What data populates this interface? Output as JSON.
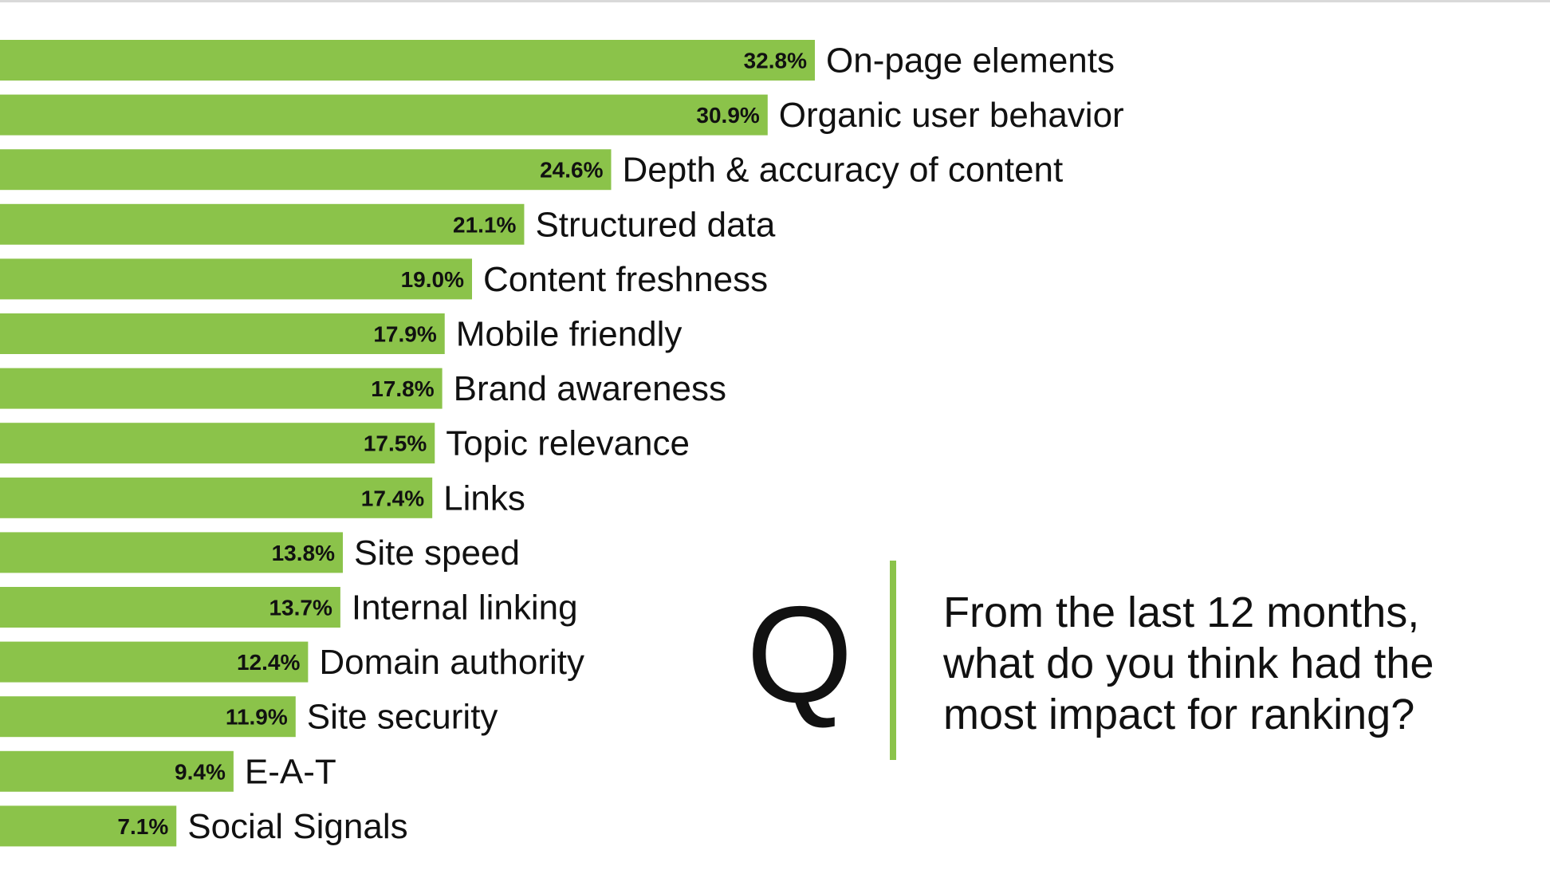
{
  "colors": {
    "bar": "#8bc34a",
    "text": "#111111",
    "accent_rule": "#8bc34a"
  },
  "question": {
    "mark": "Q",
    "lines": [
      "From the last 12 months,",
      "what do you think had the",
      "most impact for ranking?"
    ]
  },
  "chart_data": {
    "type": "bar",
    "orientation": "horizontal",
    "categories": [
      "On-page elements",
      "Organic user behavior",
      "Depth & accuracy of content",
      "Structured data",
      "Content freshness",
      "Mobile friendly",
      "Brand awareness",
      "Topic relevance",
      "Links",
      "Site speed",
      "Internal linking",
      "Domain authority",
      "Site security",
      "E-A-T",
      "Social Signals"
    ],
    "values": [
      32.8,
      30.9,
      24.6,
      21.1,
      19.0,
      17.9,
      17.8,
      17.5,
      17.4,
      13.8,
      13.7,
      12.4,
      11.9,
      9.4,
      7.1
    ],
    "value_labels": [
      "32.8%",
      "30.9%",
      "24.6%",
      "21.1%",
      "19.0%",
      "17.9%",
      "17.8%",
      "17.5%",
      "17.4%",
      "13.8%",
      "13.7%",
      "12.4%",
      "11.9%",
      "9.4%",
      "7.1%"
    ],
    "unit": "%",
    "grid": false,
    "legend": "none"
  }
}
